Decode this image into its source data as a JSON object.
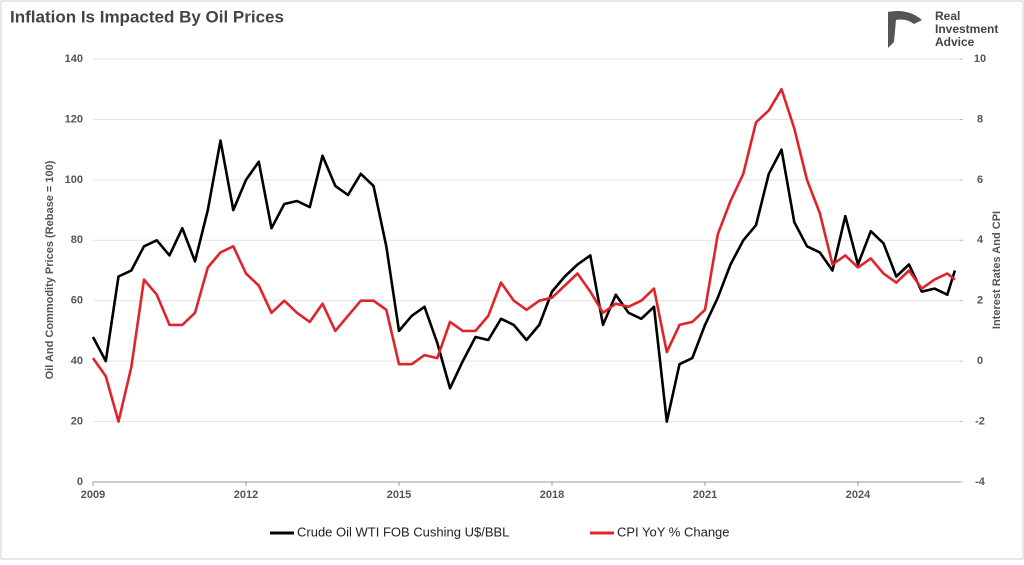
{
  "chart_data": {
    "type": "line",
    "title": "Inflation Is Impacted By Oil Prices",
    "logo": [
      "Real",
      "Investment",
      "Advice"
    ],
    "ylabel": "Oil And Commodity Prices (Rebase = 100)",
    "y2label": "Interest Rates And CPI",
    "x": [
      2009.0,
      2009.25,
      2009.5,
      2009.75,
      2010.0,
      2010.25,
      2010.5,
      2010.75,
      2011.0,
      2011.25,
      2011.5,
      2011.75,
      2012.0,
      2012.25,
      2012.5,
      2012.75,
      2013.0,
      2013.25,
      2013.5,
      2013.75,
      2014.0,
      2014.25,
      2014.5,
      2014.75,
      2015.0,
      2015.25,
      2015.5,
      2015.75,
      2016.0,
      2016.25,
      2016.5,
      2016.75,
      2017.0,
      2017.25,
      2017.5,
      2017.75,
      2018.0,
      2018.25,
      2018.5,
      2018.75,
      2019.0,
      2019.25,
      2019.5,
      2019.75,
      2020.0,
      2020.25,
      2020.5,
      2020.75,
      2021.0,
      2021.25,
      2021.5,
      2021.75,
      2022.0,
      2022.25,
      2022.5,
      2022.75,
      2023.0,
      2023.25,
      2023.5,
      2023.75,
      2024.0,
      2024.25,
      2024.5,
      2024.75,
      2025.0,
      2025.25,
      2025.5,
      2025.75,
      2025.9
    ],
    "xlim": [
      2009,
      2026.0
    ],
    "xticks": [
      2009,
      2012,
      2015,
      2018,
      2021,
      2024
    ],
    "ylim": [
      0,
      140
    ],
    "yticks": [
      0,
      20,
      40,
      60,
      80,
      100,
      120,
      140
    ],
    "y2lim": [
      -4,
      10
    ],
    "y2ticks": [
      -4,
      -2,
      0,
      2,
      4,
      6,
      8,
      10
    ],
    "series": [
      {
        "name": "Crude Oil WTI FOB Cushing U$/BBL",
        "color": "#000000",
        "values": [
          48,
          40,
          68,
          70,
          78,
          80,
          75,
          84,
          73,
          90,
          113,
          90,
          100,
          106,
          84,
          92,
          93,
          91,
          108,
          98,
          95,
          102,
          98,
          78,
          50,
          55,
          58,
          46,
          31,
          40,
          48,
          47,
          54,
          52,
          47,
          52,
          63,
          68,
          72,
          75,
          52,
          62,
          56,
          54,
          58,
          20,
          39,
          41,
          52,
          61,
          72,
          80,
          85,
          102,
          110,
          86,
          78,
          76,
          70,
          88,
          72,
          83,
          79,
          68,
          72,
          63,
          64,
          62,
          70
        ]
      },
      {
        "name": "CPI YoY % Change",
        "color": "#e0242b",
        "axis": "y2",
        "values": [
          0.1,
          -0.5,
          -2.0,
          -0.2,
          2.7,
          2.2,
          1.2,
          1.2,
          1.6,
          3.1,
          3.6,
          3.8,
          2.9,
          2.5,
          1.6,
          2.0,
          1.6,
          1.3,
          1.9,
          1.0,
          1.5,
          2.0,
          2.0,
          1.7,
          -0.1,
          -0.1,
          0.2,
          0.1,
          1.3,
          1.0,
          1.0,
          1.5,
          2.6,
          2.0,
          1.7,
          2.0,
          2.1,
          2.5,
          2.9,
          2.3,
          1.6,
          1.9,
          1.8,
          2.0,
          2.4,
          0.3,
          1.2,
          1.3,
          1.7,
          4.2,
          5.3,
          6.2,
          7.9,
          8.3,
          9.0,
          7.7,
          6.0,
          4.9,
          3.2,
          3.5,
          3.1,
          3.4,
          2.9,
          2.6,
          3.0,
          2.4,
          2.7,
          2.9,
          2.7
        ]
      }
    ]
  }
}
